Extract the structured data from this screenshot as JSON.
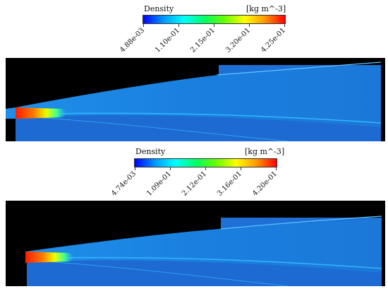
{
  "panels": [
    {
      "colorbar": {
        "title": "Density",
        "unit": "[kg m^-3]",
        "ticks": [
          "4.88e-03",
          "1.10e-01",
          "2.15e-01",
          "3.20e-01",
          "4.25e-01"
        ]
      }
    },
    {
      "colorbar": {
        "title": "Density",
        "unit": "[kg m^-3]",
        "ticks": [
          "4.74e-03",
          "1.09e-01",
          "2.12e-01",
          "3.16e-01",
          "4.20e-01"
        ]
      }
    }
  ],
  "colormap": [
    "#0000ff",
    "#0099ff",
    "#00ffff",
    "#00ff66",
    "#66ff00",
    "#ffff00",
    "#ff9900",
    "#ff0000"
  ]
}
